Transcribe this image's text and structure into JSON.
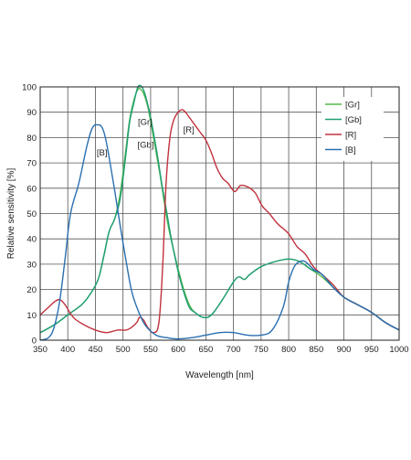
{
  "chart_data": {
    "type": "line",
    "xlabel": "Wavelength [nm]",
    "ylabel": "Relative sensitivity [%]",
    "xlim": [
      350,
      1000
    ],
    "ylim": [
      0,
      100
    ],
    "xticks": [
      350,
      400,
      450,
      500,
      550,
      600,
      650,
      700,
      750,
      800,
      850,
      900,
      950,
      1000
    ],
    "yticks": [
      0,
      10,
      20,
      30,
      40,
      50,
      60,
      70,
      80,
      90,
      100
    ],
    "grid": true,
    "legend_position": "top-right",
    "series": [
      {
        "name": "[Gr]",
        "color": "#55b84a",
        "x": [
          350,
          375,
          400,
          425,
          440,
          455,
          465,
          475,
          485,
          495,
          505,
          512,
          520,
          527,
          532,
          538,
          545,
          552,
          560,
          568,
          575,
          582,
          590,
          600,
          610,
          620,
          630,
          645,
          660,
          680,
          700,
          710,
          720,
          730,
          750,
          775,
          800,
          820,
          840,
          860,
          880,
          900,
          925,
          950,
          975,
          1000
        ],
        "y": [
          3,
          6,
          10,
          14,
          18,
          24,
          33,
          43,
          48,
          58,
          75,
          87,
          95,
          99,
          99,
          97,
          92,
          84,
          74,
          64,
          54,
          45,
          37,
          28,
          20,
          14,
          11,
          9,
          10,
          16,
          23,
          25,
          24,
          26,
          29,
          31,
          32,
          31,
          28,
          25,
          21,
          17,
          14,
          11,
          7,
          4
        ]
      },
      {
        "name": "[Gb]",
        "color": "#1f9e75",
        "x": [
          350,
          375,
          400,
          425,
          440,
          455,
          465,
          475,
          485,
          495,
          505,
          512,
          520,
          527,
          534,
          540,
          548,
          555,
          563,
          570,
          578,
          585,
          592,
          600,
          610,
          620,
          630,
          645,
          660,
          680,
          700,
          710,
          720,
          730,
          750,
          775,
          800,
          820,
          840,
          860,
          880,
          900,
          925,
          950,
          975,
          1000
        ],
        "y": [
          3,
          6,
          10,
          14,
          18,
          24,
          33,
          43,
          48,
          56,
          73,
          86,
          94,
          100,
          100,
          97,
          90,
          82,
          72,
          62,
          52,
          43,
          35,
          27,
          19,
          13,
          11,
          9,
          10,
          16,
          23,
          25,
          24,
          26,
          29,
          31,
          32,
          31,
          28,
          26,
          21,
          17,
          14,
          11,
          7,
          4
        ]
      },
      {
        "name": "[R]",
        "color": "#c0313d",
        "x": [
          350,
          365,
          375,
          385,
          395,
          410,
          430,
          450,
          470,
          490,
          505,
          515,
          525,
          530,
          537,
          545,
          555,
          565,
          572,
          578,
          585,
          592,
          600,
          607,
          613,
          620,
          630,
          640,
          650,
          660,
          670,
          680,
          690,
          700,
          705,
          712,
          720,
          730,
          740,
          752,
          765,
          780,
          800,
          815,
          830,
          845,
          860,
          880,
          900,
          925,
          950,
          975,
          1000
        ],
        "y": [
          10,
          13,
          15,
          16,
          14,
          9,
          6,
          4,
          3,
          4,
          4,
          5,
          7,
          9,
          8,
          5,
          3,
          7,
          30,
          62,
          80,
          87,
          90,
          91,
          90,
          88,
          85,
          82,
          79,
          74,
          68,
          64,
          62,
          59,
          59,
          61,
          61,
          60,
          58,
          53,
          50,
          46,
          42,
          37,
          34,
          29,
          26,
          22,
          17,
          14,
          11,
          7,
          4
        ]
      },
      {
        "name": "[B]",
        "color": "#2a6fb0",
        "x": [
          350,
          365,
          375,
          385,
          395,
          405,
          420,
          435,
          445,
          455,
          462,
          468,
          475,
          485,
          495,
          505,
          515,
          525,
          540,
          560,
          580,
          600,
          625,
          650,
          675,
          700,
          725,
          750,
          770,
          790,
          800,
          810,
          820,
          830,
          845,
          860,
          880,
          900,
          925,
          950,
          975,
          1000
        ],
        "y": [
          0,
          1,
          5,
          15,
          32,
          50,
          62,
          77,
          84,
          85,
          84,
          80,
          72,
          59,
          45,
          32,
          20,
          13,
          6,
          2,
          1,
          0.5,
          1,
          2,
          3,
          3,
          2,
          2,
          4,
          13,
          23,
          29,
          31,
          31,
          28,
          26,
          21,
          17,
          14,
          11,
          7,
          4
        ]
      }
    ],
    "annotations": [
      {
        "text": "[B]",
        "x": 462,
        "y": 73
      },
      {
        "text": "[Gr]",
        "x": 540,
        "y": 85
      },
      {
        "text": "[Gb]",
        "x": 541,
        "y": 76
      },
      {
        "text": "[R]",
        "x": 619,
        "y": 82
      }
    ]
  }
}
